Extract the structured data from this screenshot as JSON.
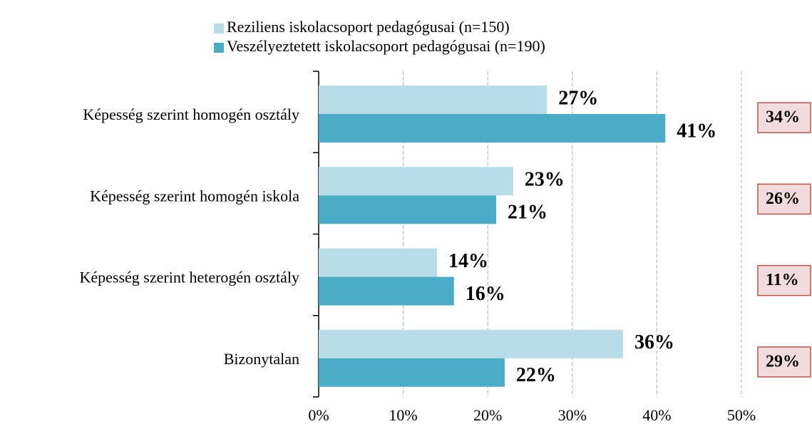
{
  "chart_data": {
    "type": "bar",
    "orientation": "horizontal",
    "categories": [
      "Képesség szerint homogén osztály",
      "Képesség szerint homogén iskola",
      "Képesség szerint heterogén osztály",
      "Bizonytalan"
    ],
    "series": [
      {
        "name": "Reziliens iskolacsoport pedagógusai (n=150)",
        "color": "#b7dde8",
        "values": [
          27,
          23,
          14,
          36
        ],
        "value_labels": [
          "27%",
          "23%",
          "14%",
          "36%"
        ]
      },
      {
        "name": "Veszélyeztetett iskolacsoport pedagógusai (n=190)",
        "color": "#4bacc6",
        "values": [
          41,
          21,
          16,
          22
        ],
        "value_labels": [
          "41%",
          "21%",
          "16%",
          "22%"
        ]
      }
    ],
    "totals": {
      "values": [
        34,
        26,
        11,
        29
      ],
      "value_labels": [
        "34%",
        "26%",
        "11%",
        "29%"
      ],
      "fill": "#f2dcdb",
      "border": "#c0504d"
    },
    "xlim": [
      0,
      50
    ],
    "xticks": [
      {
        "value": 0,
        "label": "0%"
      },
      {
        "value": 10,
        "label": "10%"
      },
      {
        "value": 20,
        "label": "20%"
      },
      {
        "value": 30,
        "label": "30%"
      },
      {
        "value": 40,
        "label": "40%"
      },
      {
        "value": 50,
        "label": "50%"
      }
    ],
    "grid": true,
    "legend": "top"
  }
}
